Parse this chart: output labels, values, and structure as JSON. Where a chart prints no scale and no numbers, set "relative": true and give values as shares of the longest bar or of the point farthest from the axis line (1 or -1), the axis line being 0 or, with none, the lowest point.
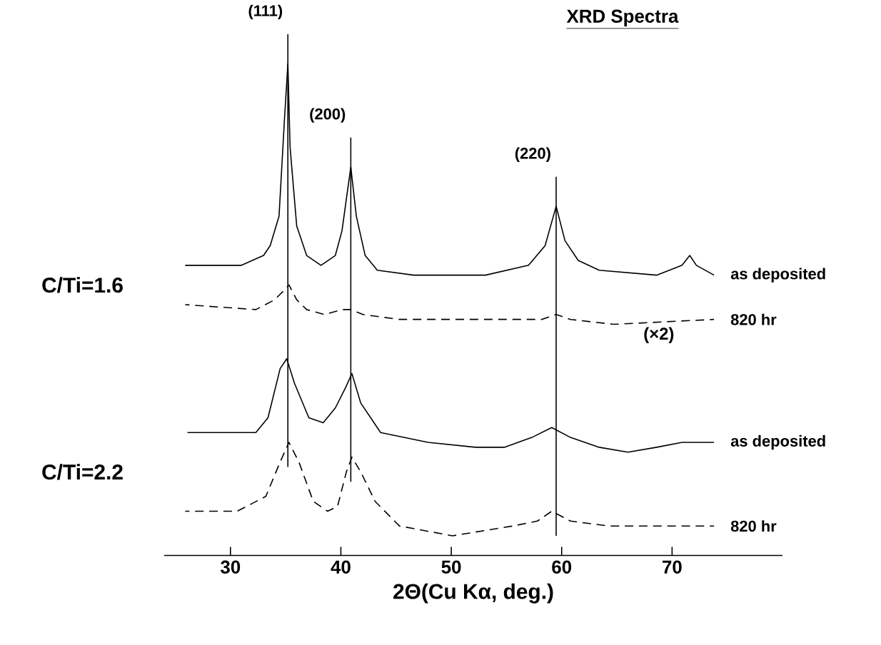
{
  "chart_data": {
    "type": "line",
    "title": "XRD Spectra",
    "xlabel": "2Θ(Cu Kα, deg.)",
    "relative": true,
    "xlim": [
      24,
      80
    ],
    "xticks": [
      30,
      40,
      50,
      60,
      70
    ],
    "grid": false,
    "marker": "none",
    "series": [
      {
        "name": "as deposited",
        "color": "#000000",
        "line_style": "solid",
        "x": [
          25.9,
          31.0,
          33.0,
          33.6,
          34.4,
          34.9,
          35.2,
          35.4,
          36.0,
          36.9,
          38.2,
          39.5,
          40.1,
          40.9,
          41.4,
          42.2,
          43.3,
          46.6,
          53.1,
          57.0,
          58.5,
          59.5,
          60.3,
          61.5,
          63.4,
          68.6,
          70.9,
          71.6,
          72.2,
          73.8
        ],
        "values": [
          0.59,
          0.59,
          0.61,
          0.63,
          0.69,
          0.89,
          1.0,
          0.83,
          0.67,
          0.61,
          0.59,
          0.61,
          0.66,
          0.79,
          0.69,
          0.61,
          0.58,
          0.57,
          0.57,
          0.59,
          0.63,
          0.71,
          0.64,
          0.6,
          0.58,
          0.57,
          0.59,
          0.61,
          0.59,
          0.57
        ]
      },
      {
        "name": "820 hr",
        "color": "#000000",
        "line_style": "dashed",
        "x": [
          25.9,
          32.3,
          34.0,
          34.9,
          35.3,
          36.0,
          36.9,
          38.5,
          40.1,
          40.9,
          42.0,
          45.3,
          53.1,
          58.2,
          59.5,
          60.8,
          64.7,
          73.8
        ],
        "values": [
          0.51,
          0.5,
          0.52,
          0.54,
          0.55,
          0.52,
          0.5,
          0.49,
          0.5,
          0.5,
          0.49,
          0.48,
          0.48,
          0.48,
          0.49,
          0.48,
          0.47,
          0.48
        ]
      },
      {
        "name": "as deposited",
        "color": "#000000",
        "line_style": "solid",
        "x": [
          26.1,
          32.3,
          33.4,
          34.5,
          35.1,
          35.8,
          37.1,
          38.4,
          39.5,
          40.4,
          41.0,
          41.8,
          43.6,
          47.9,
          52.2,
          54.8,
          57.3,
          59.1,
          60.8,
          63.4,
          66.0,
          68.6,
          70.9,
          73.8
        ],
        "values": [
          0.25,
          0.25,
          0.28,
          0.38,
          0.4,
          0.35,
          0.28,
          0.27,
          0.3,
          0.34,
          0.37,
          0.31,
          0.25,
          0.23,
          0.22,
          0.22,
          0.24,
          0.26,
          0.24,
          0.22,
          0.21,
          0.22,
          0.23,
          0.23
        ]
      },
      {
        "name": "820 hr",
        "color": "#000000",
        "line_style": "dashed",
        "x": [
          25.9,
          30.6,
          33.2,
          34.5,
          35.3,
          36.2,
          37.5,
          38.8,
          39.7,
          40.5,
          41.0,
          41.8,
          43.1,
          45.3,
          50.1,
          55.6,
          57.8,
          59.1,
          60.8,
          64.3,
          67.7,
          70.8,
          73.8
        ],
        "values": [
          0.09,
          0.09,
          0.12,
          0.19,
          0.23,
          0.19,
          0.11,
          0.09,
          0.1,
          0.17,
          0.2,
          0.17,
          0.11,
          0.06,
          0.04,
          0.06,
          0.07,
          0.09,
          0.07,
          0.06,
          0.06,
          0.06,
          0.06
        ]
      }
    ],
    "ref_lines": [
      {
        "axis": "x",
        "value": 35.2
      },
      {
        "axis": "x",
        "value": 40.9
      },
      {
        "axis": "x",
        "value": 59.5
      }
    ],
    "annotations": [
      "C/Ti=1.6",
      "C/Ti=2.2",
      "(×2)",
      {
        "text": "(111)",
        "x": 35.2,
        "y": 1.0
      },
      {
        "text": "(200)",
        "x": 40.9,
        "y": 0.79
      },
      {
        "text": "(220)",
        "x": 59.5,
        "y": 0.71
      }
    ]
  }
}
